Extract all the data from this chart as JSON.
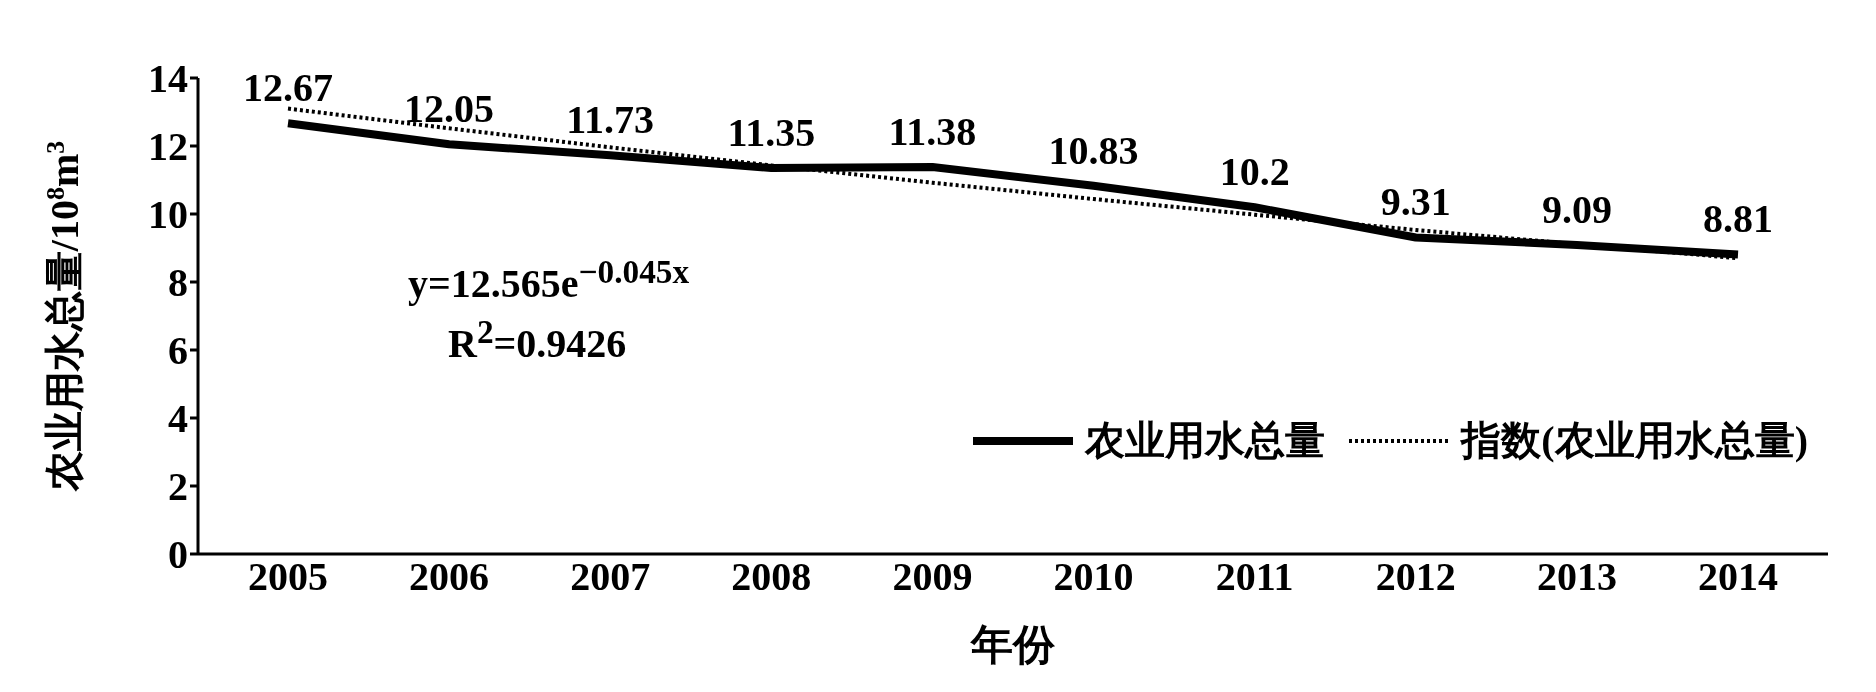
{
  "chart_data": {
    "type": "line",
    "xlabel": "年份",
    "ylabel": "农业用水总量/10$^{8}$m$^{3}$",
    "categories": [
      "2005",
      "2006",
      "2007",
      "2008",
      "2009",
      "2010",
      "2011",
      "2012",
      "2013",
      "2014"
    ],
    "ylim": [
      0,
      14
    ],
    "yticks": [
      0,
      2,
      4,
      6,
      8,
      10,
      12,
      14
    ],
    "grid": false,
    "legend": "right",
    "marker": "none",
    "series": [
      {
        "name": "农业用水总量",
        "color": "#000000",
        "line_style": "solid",
        "values": [
          12.67,
          12.05,
          11.73,
          11.35,
          11.38,
          10.83,
          10.2,
          9.31,
          9.09,
          8.81
        ],
        "value_labels": [
          "12.67",
          "12.05",
          "11.73",
          "11.35",
          "11.38",
          "10.83",
          "10.2",
          "9.31",
          "9.09",
          "8.81"
        ]
      },
      {
        "name": "指数(农业用水总量)",
        "color": "#000000",
        "line_style": "dotted",
        "values": [
          13.1,
          12.52,
          11.96,
          11.43,
          10.92,
          10.44,
          9.98,
          9.53,
          9.11,
          8.7
        ]
      }
    ],
    "annotations": [
      "y=12.565e$^{−0.045x}$",
      "R$^{2}$=0.9426"
    ]
  }
}
